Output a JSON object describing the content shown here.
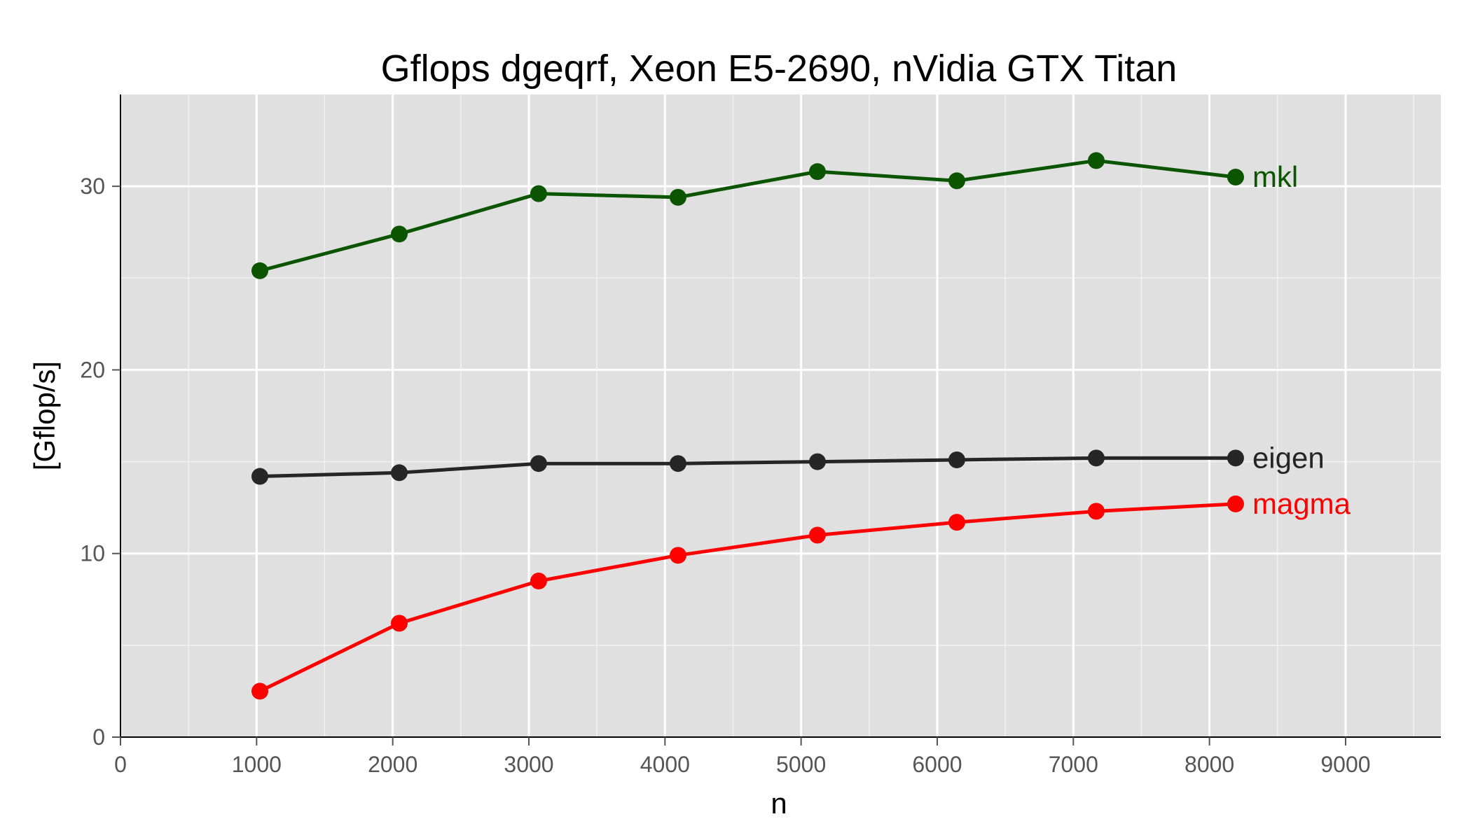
{
  "chart_data": {
    "type": "line",
    "title": "Gflops dgeqrf, Xeon E5-2690, nVidia GTX Titan",
    "xlabel": "n",
    "ylabel": "[Gflop/s]",
    "xlim": [
      0,
      9700
    ],
    "ylim": [
      0,
      35
    ],
    "xticks": [
      0,
      1000,
      2000,
      3000,
      4000,
      5000,
      6000,
      7000,
      8000,
      9000
    ],
    "yticks": [
      0,
      10,
      20,
      30
    ],
    "grid": true,
    "background": "#e0e0e0",
    "x": [
      1024,
      2048,
      3072,
      4096,
      5120,
      6144,
      7168,
      8192
    ],
    "series": [
      {
        "name": "mkl",
        "color": "#0b5500",
        "values": [
          25.4,
          27.4,
          29.6,
          29.4,
          30.8,
          30.3,
          31.4,
          30.5
        ]
      },
      {
        "name": "eigen",
        "color": "#262626",
        "values": [
          14.2,
          14.4,
          14.9,
          14.9,
          15.0,
          15.1,
          15.2,
          15.2
        ]
      },
      {
        "name": "magma",
        "color": "#ff0000",
        "values": [
          2.5,
          6.2,
          8.5,
          9.9,
          11.0,
          11.7,
          12.3,
          12.7
        ]
      }
    ]
  }
}
